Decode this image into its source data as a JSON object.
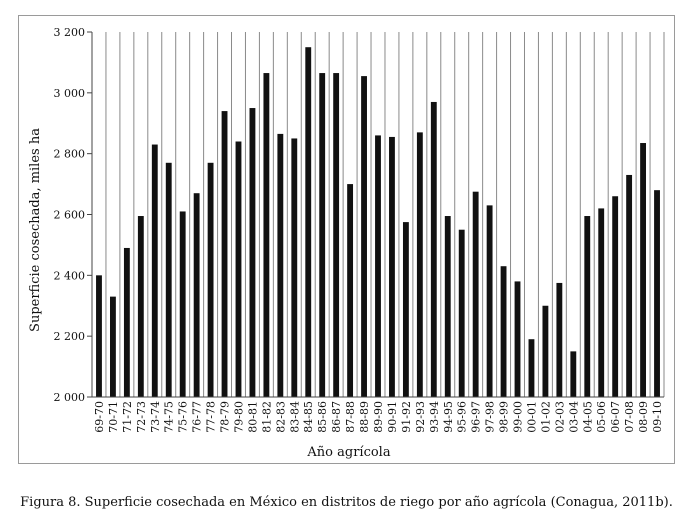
{
  "chart_data": {
    "type": "bar",
    "xlabel": "Año agrícola",
    "ylabel": "Superficie cosechada, miles ha",
    "ylim": [
      2000,
      3200
    ],
    "yticks": [
      2000,
      2200,
      2400,
      2600,
      2800,
      3000,
      3200
    ],
    "ytick_labels": [
      "2 000",
      "2 200",
      "2 400",
      "2 600",
      "2 800",
      "3 000",
      "3 200"
    ],
    "grid": "vertical lines between categories",
    "bar_color": "#111111",
    "categories": [
      "69-70",
      "70-71",
      "71-72",
      "72-73",
      "73-74",
      "74-75",
      "75-76",
      "76-77",
      "77-78",
      "78-79",
      "79-80",
      "80-81",
      "81-82",
      "82-83",
      "83-84",
      "84-85",
      "85-86",
      "86-87",
      "87-88",
      "88-89",
      "89-90",
      "90-91",
      "91-92",
      "92-93",
      "93-94",
      "94-95",
      "95-96",
      "96-97",
      "97-98",
      "98-99",
      "99-00",
      "00-01",
      "01-02",
      "02-03",
      "03-04",
      "04-05",
      "05-06",
      "06-07",
      "07-08",
      "08-09",
      "09-10"
    ],
    "values": [
      2400,
      2330,
      2490,
      2595,
      2830,
      2770,
      2610,
      2670,
      2770,
      2940,
      2840,
      2950,
      3065,
      2865,
      2850,
      3150,
      3065,
      3065,
      2700,
      3055,
      2860,
      2855,
      2575,
      2870,
      2970,
      2595,
      2550,
      2675,
      2630,
      2430,
      2380,
      2190,
      2300,
      2375,
      2150,
      2595,
      2620,
      2660,
      2730,
      2835,
      2680
    ]
  },
  "caption": "Figura 8. Superficie cosechada en México en distritos de riego por año agrícola (Conagua, 2011b)."
}
